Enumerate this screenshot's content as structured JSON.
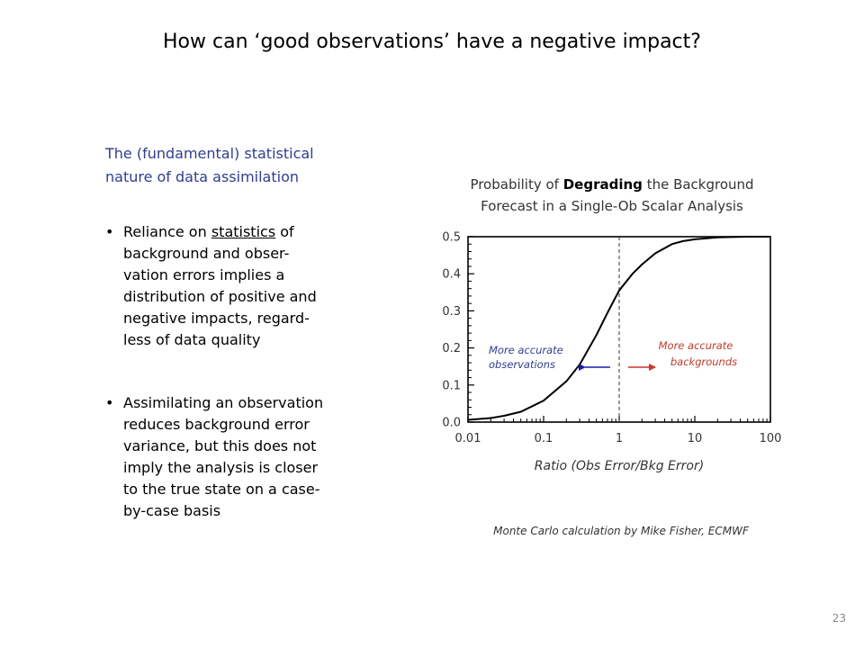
{
  "slide": {
    "title": "How can ‘good observations’ have a negative impact?",
    "intro_line1": "The (fundamental) statistical",
    "intro_line2": "nature of data assimilation",
    "bullet1": {
      "marker": "•",
      "l1_pre": "Reliance on ",
      "l1_u": "statistics",
      "l1_post": " of",
      "l2": "background and obser-",
      "l3": "vation errors implies a",
      "l4": "distribution of positive and",
      "l5": "negative impacts, regard-",
      "l6": "less of data quality"
    },
    "bullet2": {
      "marker": "•",
      "l1": "Assimilating an observation",
      "l2": "reduces background error",
      "l3": "variance, but this does not",
      "l4": "imply the analysis is closer",
      "l5": "to the true state on a case-",
      "l6": "by-case basis"
    },
    "page_number": "23",
    "credit": "Monte Carlo calculation by Mike Fisher, ECMWF"
  },
  "chart_data": {
    "type": "line",
    "title_line1_pre": "Probability of ",
    "title_line1_bold": "Degrading",
    "title_line1_post": " the Background",
    "title_line2": "Forecast in a Single-Ob Scalar Analysis",
    "xlabel": "Ratio (Obs Error/Bkg Error)",
    "xscale": "log",
    "xlim": [
      0.01,
      100
    ],
    "ylim": [
      0,
      0.5
    ],
    "x_tick_labels": [
      "0.01",
      "0.1",
      "1",
      "10",
      "100"
    ],
    "y_tick_labels": [
      "0.0",
      "0.1",
      "0.2",
      "0.3",
      "0.4",
      "0.5"
    ],
    "grid": false,
    "vertical_reference_line_x": 1,
    "series": [
      {
        "x": [
          0.01,
          0.02,
          0.03,
          0.05,
          0.1,
          0.2,
          0.3,
          0.5,
          0.7,
          1,
          1.5,
          2,
          3,
          5,
          7,
          10,
          20,
          30,
          50,
          100
        ],
        "y": [
          0.006,
          0.011,
          0.017,
          0.028,
          0.058,
          0.11,
          0.155,
          0.235,
          0.295,
          0.355,
          0.4,
          0.425,
          0.455,
          0.48,
          0.488,
          0.493,
          0.498,
          0.499,
          0.5,
          0.5
        ]
      }
    ],
    "annotations": {
      "left_line1": "More accurate",
      "left_line2": "observations",
      "right_line1": "More accurate",
      "right_line2": "backgrounds",
      "left_color": "#2f3e8f",
      "right_color": "#c0392b"
    }
  }
}
